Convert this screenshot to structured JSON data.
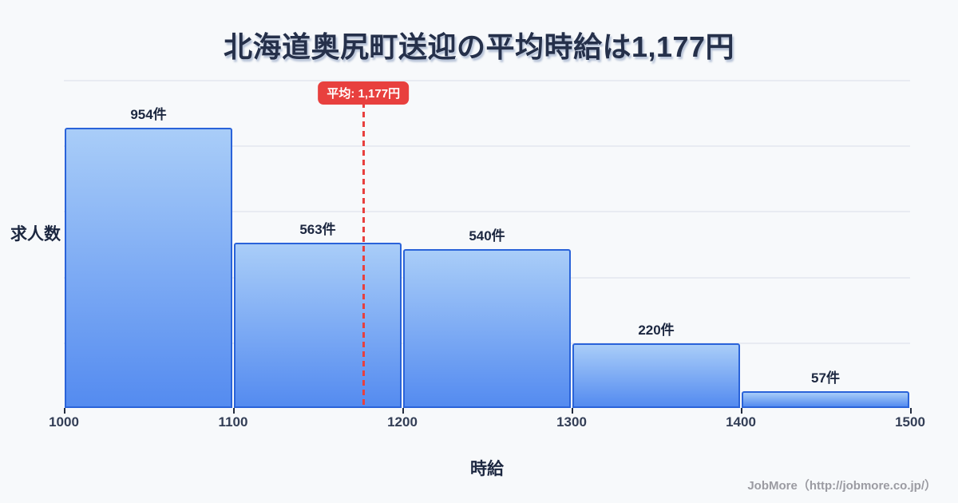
{
  "title": "北海道奥尻町送迎の平均時給は1,177円",
  "chart_data": {
    "type": "bar",
    "subtype": "histogram",
    "title": "北海道奥尻町送迎の平均時給は1,177円",
    "xlabel": "時給",
    "ylabel": "求人数",
    "x_ticks": [
      "1000",
      "1100",
      "1200",
      "1300",
      "1400",
      "1500"
    ],
    "x_range": [
      1000,
      1500
    ],
    "ylim": [
      0,
      1117
    ],
    "grid_divisions": 5,
    "legend_position": "none",
    "bins": [
      {
        "range_start": 1000,
        "range_end": 1100,
        "count": 954,
        "label": "954件"
      },
      {
        "range_start": 1100,
        "range_end": 1200,
        "count": 563,
        "label": "563件"
      },
      {
        "range_start": 1200,
        "range_end": 1300,
        "count": 540,
        "label": "540件"
      },
      {
        "range_start": 1300,
        "range_end": 1400,
        "count": 220,
        "label": "220件"
      },
      {
        "range_start": 1400,
        "range_end": 1500,
        "count": 57,
        "label": "57件"
      }
    ],
    "average": {
      "value": 1177,
      "label": "平均: 1,177円"
    }
  },
  "footer": {
    "credit": "JobMore（http://jobmore.co.jp/）"
  },
  "colors": {
    "background": "#f7f9fb",
    "bar_fill_top": "#a9cdf8",
    "bar_fill_bottom": "#548bf0",
    "bar_border": "#2a63d9",
    "average_red": "#e8403e",
    "title_navy": "#25304a",
    "gridline": "#e8ebf2",
    "tick_text": "#333e56",
    "credit_gray": "#9b9ba2"
  }
}
